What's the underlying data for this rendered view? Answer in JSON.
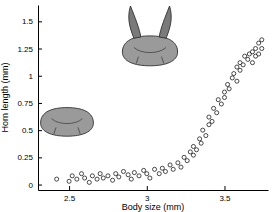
{
  "chart_data": {
    "type": "scatter",
    "x_label": "Body size (mm)",
    "y_label": "Horn length (mm)",
    "x": [
      2.42,
      2.5,
      2.52,
      2.55,
      2.58,
      2.6,
      2.63,
      2.65,
      2.68,
      2.7,
      2.72,
      2.75,
      2.78,
      2.8,
      2.82,
      2.85,
      2.88,
      2.9,
      2.92,
      2.95,
      2.98,
      3.0,
      3.02,
      3.05,
      3.08,
      3.1,
      3.12,
      3.15,
      3.17,
      3.2,
      3.22,
      3.24,
      3.26,
      3.28,
      3.3,
      3.3,
      3.32,
      3.34,
      3.35,
      3.36,
      3.38,
      3.4,
      3.4,
      3.42,
      3.43,
      3.45,
      3.46,
      3.48,
      3.5,
      3.5,
      3.52,
      3.53,
      3.55,
      3.56,
      3.58,
      3.58,
      3.6,
      3.6,
      3.62,
      3.63,
      3.65,
      3.66,
      3.68,
      3.68,
      3.7,
      3.7,
      3.72,
      3.72,
      3.74,
      3.74
    ],
    "values": [
      0.05,
      0.03,
      0.08,
      0.05,
      0.1,
      0.06,
      0.02,
      0.08,
      0.05,
      0.1,
      0.06,
      0.08,
      0.04,
      0.1,
      0.07,
      0.12,
      0.09,
      0.05,
      0.11,
      0.08,
      0.13,
      0.1,
      0.06,
      0.14,
      0.1,
      0.15,
      0.12,
      0.18,
      0.14,
      0.2,
      0.16,
      0.25,
      0.22,
      0.3,
      0.27,
      0.35,
      0.32,
      0.42,
      0.38,
      0.5,
      0.45,
      0.55,
      0.62,
      0.58,
      0.7,
      0.66,
      0.78,
      0.74,
      0.85,
      0.8,
      0.92,
      0.88,
      0.98,
      1.02,
      0.95,
      1.08,
      1.05,
      1.12,
      1.1,
      1.18,
      1.15,
      1.2,
      1.12,
      1.22,
      1.18,
      1.25,
      1.2,
      1.3,
      1.25,
      1.33
    ],
    "color": "#000000",
    "marker": "circle",
    "xlim": [
      2.3,
      3.78
    ],
    "xticks": [
      2.5,
      3,
      3.5
    ],
    "ylim": [
      -0.05,
      1.65
    ],
    "yticks": [
      0,
      0.25,
      0.5,
      0.75,
      1,
      1.25,
      1.5
    ],
    "grid": false
  }
}
